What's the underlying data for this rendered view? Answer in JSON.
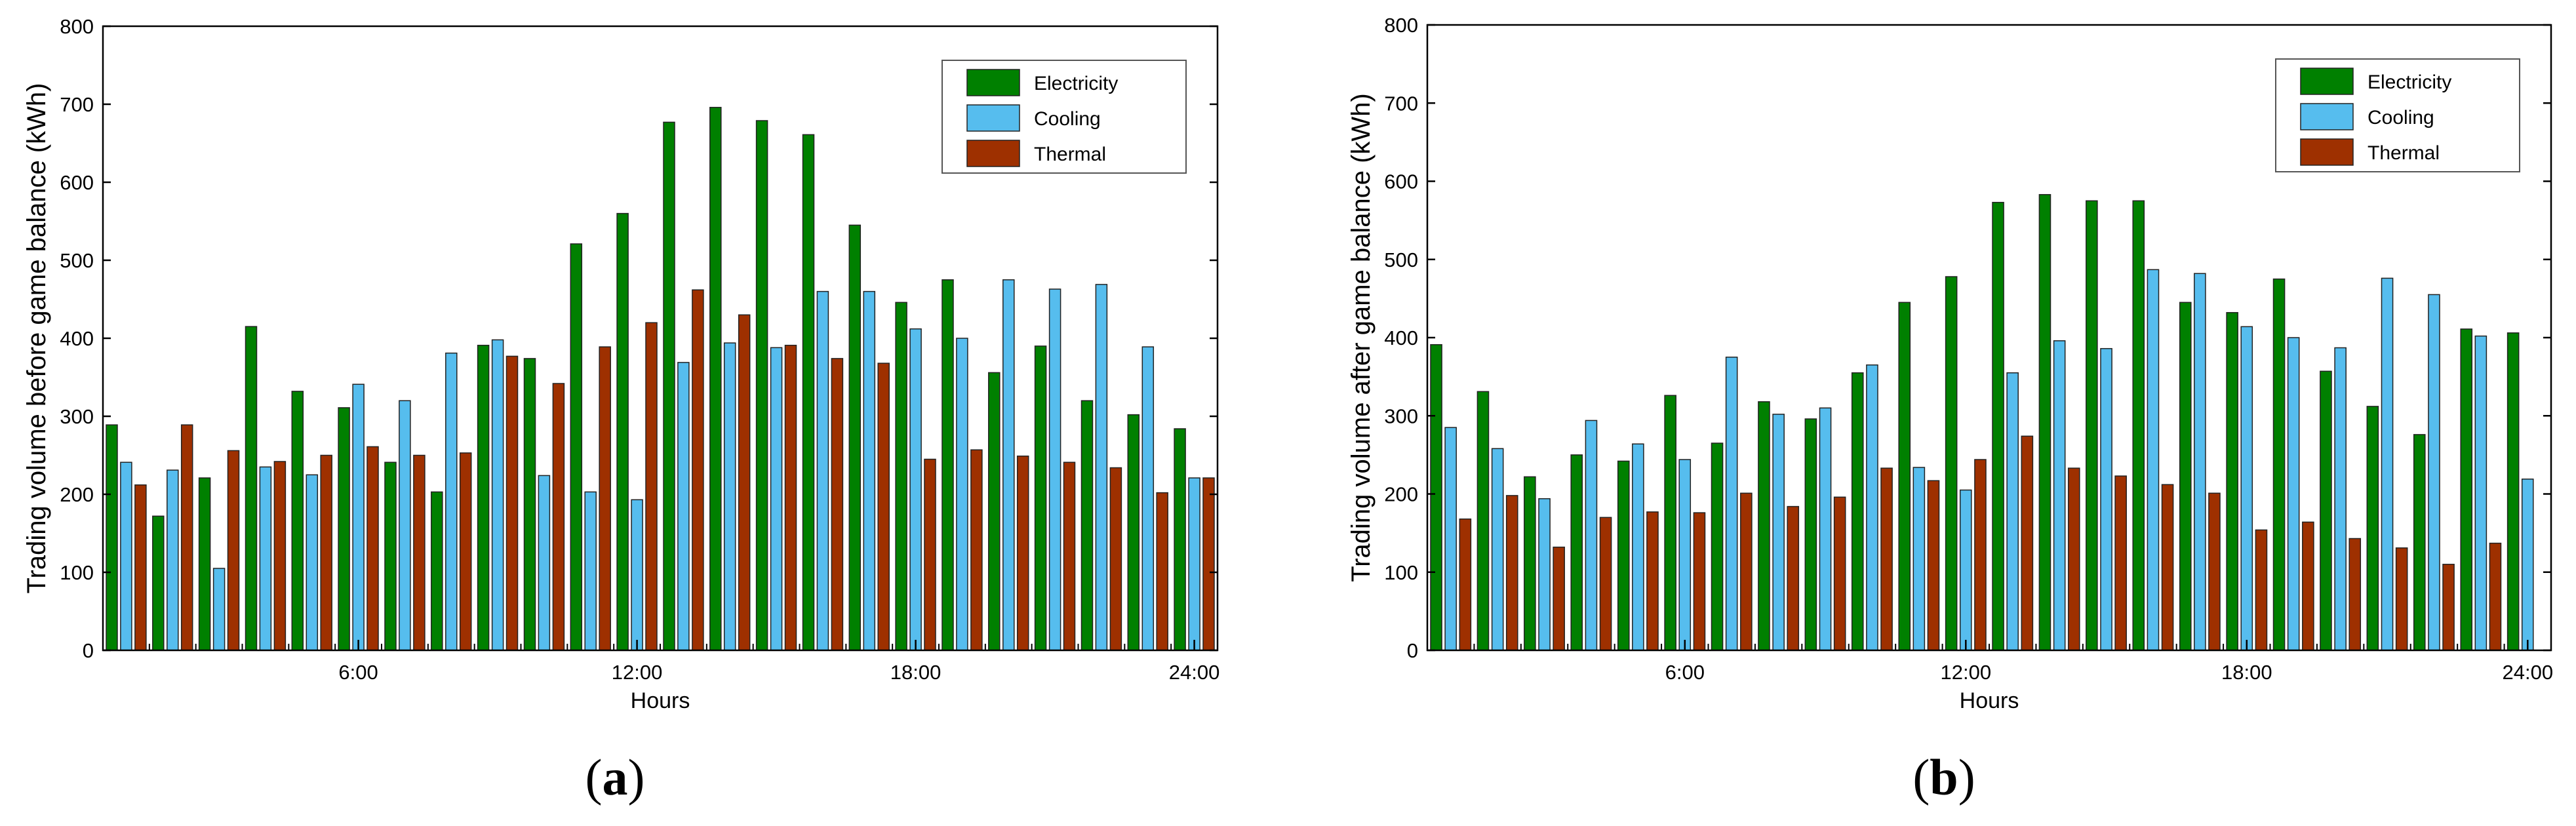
{
  "colors": {
    "electricity": "#008000",
    "cooling": "#56bdee",
    "thermal": "#9e3000",
    "axis": "#000000",
    "background": "#ffffff"
  },
  "chart_data": [
    {
      "type": "bar",
      "panel_label": "a",
      "xlabel": "Hours",
      "ylabel": "Trading volume before game balance (kWh)",
      "ylim": [
        0,
        800
      ],
      "yticks": [
        0,
        100,
        200,
        300,
        400,
        500,
        600,
        700,
        800
      ],
      "xticks": [
        {
          "hour": 6,
          "label": "6:00"
        },
        {
          "hour": 12,
          "label": "12:00"
        },
        {
          "hour": 18,
          "label": "18:00"
        },
        {
          "hour": 24,
          "label": "24:00"
        }
      ],
      "hours": [
        1,
        2,
        3,
        4,
        5,
        6,
        7,
        8,
        9,
        10,
        11,
        12,
        13,
        14,
        15,
        16,
        17,
        18,
        19,
        20,
        21,
        22,
        23,
        24
      ],
      "legend_position": "top-right",
      "series": [
        {
          "name": "Electricity",
          "key": "electricity",
          "values": [
            289,
            172,
            221,
            415,
            332,
            311,
            241,
            203,
            391,
            374,
            521,
            560,
            677,
            696,
            679,
            661,
            545,
            446,
            475,
            356,
            390,
            320,
            302,
            284
          ]
        },
        {
          "name": "Cooling",
          "key": "cooling",
          "values": [
            241,
            231,
            105,
            235,
            225,
            341,
            320,
            381,
            398,
            224,
            203,
            193,
            369,
            394,
            388,
            460,
            460,
            412,
            400,
            475,
            463,
            469,
            389,
            221
          ]
        },
        {
          "name": "Thermal",
          "key": "thermal",
          "values": [
            212,
            289,
            256,
            242,
            250,
            261,
            250,
            253,
            377,
            342,
            389,
            420,
            462,
            430,
            391,
            374,
            368,
            245,
            257,
            249,
            241,
            234,
            202,
            221
          ]
        }
      ]
    },
    {
      "type": "bar",
      "panel_label": "b",
      "xlabel": "Hours",
      "ylabel": "Trading volume after game balance (kWh)",
      "ylim": [
        0,
        800
      ],
      "yticks": [
        0,
        100,
        200,
        300,
        400,
        500,
        600,
        700,
        800
      ],
      "xticks": [
        {
          "hour": 6,
          "label": "6:00"
        },
        {
          "hour": 12,
          "label": "12:00"
        },
        {
          "hour": 18,
          "label": "18:00"
        },
        {
          "hour": 24,
          "label": "24:00"
        }
      ],
      "hours": [
        1,
        2,
        3,
        4,
        5,
        6,
        7,
        8,
        9,
        10,
        11,
        12,
        13,
        14,
        15,
        16,
        17,
        18,
        19,
        20,
        21,
        22,
        23,
        24
      ],
      "legend_position": "top-right",
      "series": [
        {
          "name": "Electricity",
          "key": "electricity",
          "values": [
            391,
            331,
            222,
            250,
            242,
            326,
            265,
            318,
            296,
            355,
            445,
            478,
            573,
            583,
            575,
            575,
            445,
            432,
            475,
            357,
            312,
            276,
            411,
            406
          ]
        },
        {
          "name": "Cooling",
          "key": "cooling",
          "values": [
            285,
            258,
            194,
            294,
            264,
            244,
            375,
            302,
            310,
            365,
            234,
            205,
            355,
            396,
            386,
            487,
            482,
            414,
            400,
            387,
            476,
            455,
            402,
            219
          ]
        },
        {
          "name": "Thermal",
          "key": "thermal",
          "values": [
            168,
            198,
            132,
            170,
            177,
            176,
            201,
            184,
            196,
            233,
            217,
            244,
            274,
            233,
            223,
            212,
            201,
            154,
            164,
            143,
            131,
            110,
            137,
            null
          ]
        }
      ]
    }
  ]
}
